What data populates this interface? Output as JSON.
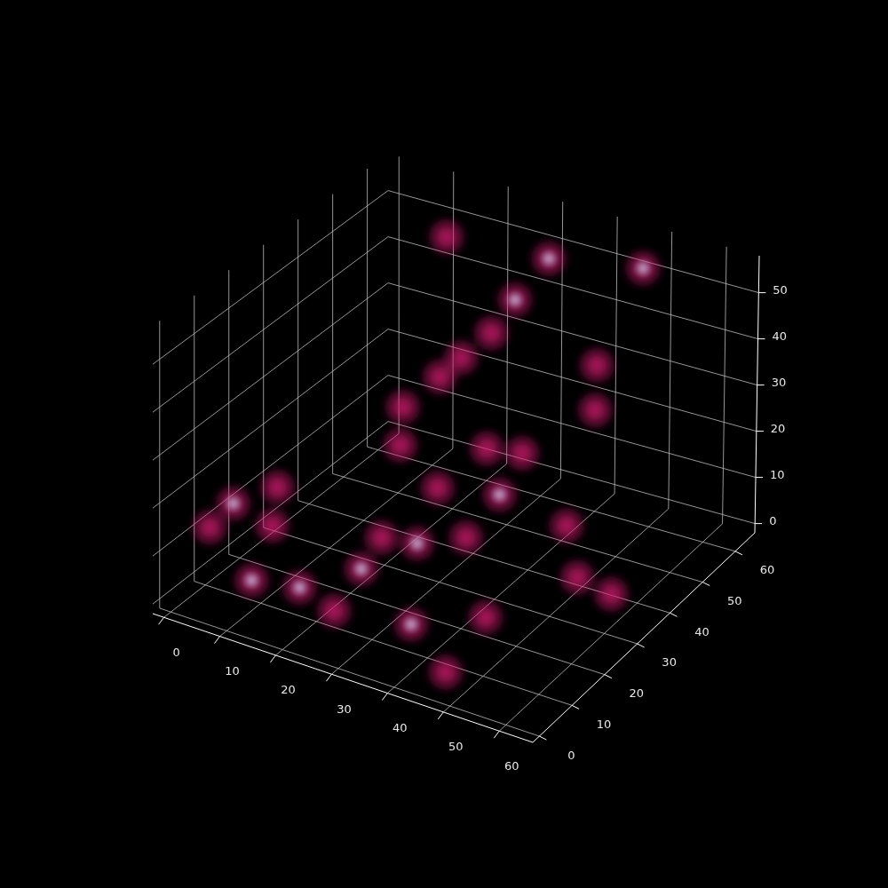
{
  "chart_data": {
    "type": "scatter3d",
    "xlim": [
      -2,
      66
    ],
    "ylim": [
      -2,
      66
    ],
    "zlim": [
      -2,
      58
    ],
    "xticks": [
      0,
      10,
      20,
      30,
      40,
      50,
      60
    ],
    "yticks": [
      0,
      10,
      20,
      30,
      40,
      50,
      60
    ],
    "zticks": [
      0,
      10,
      20,
      30,
      40,
      50
    ],
    "grid": true,
    "series": [
      {
        "color": "#d81b72",
        "marker": "blob",
        "x": [
          10,
          46,
          30,
          30,
          30,
          27,
          25,
          22,
          24,
          45,
          46,
          5,
          2,
          8,
          12,
          20,
          12,
          28,
          35,
          28,
          28,
          42,
          42,
          32,
          36,
          40,
          55,
          50,
          60,
          40,
          48,
          48
        ],
        "y": [
          64,
          64,
          62,
          52,
          45,
          41,
          38,
          32,
          28,
          52,
          50,
          10,
          8,
          18,
          10,
          5,
          4,
          2,
          15,
          16,
          10,
          18,
          28,
          26,
          34,
          38,
          30,
          35,
          32,
          5,
          2,
          14
        ],
        "z": [
          45,
          50,
          48,
          45,
          42,
          38,
          35,
          31,
          26,
          36,
          28,
          17,
          12,
          17,
          15,
          8,
          7,
          8,
          17,
          15,
          12,
          19,
          22,
          21,
          26,
          24,
          8,
          14,
          5,
          8,
          3,
          7
        ]
      },
      {
        "color": "#66d6ea",
        "marker": "blob",
        "x": [
          46,
          30,
          30,
          5,
          20,
          12,
          35,
          28,
          42,
          40
        ],
        "y": [
          64,
          62,
          52,
          10,
          5,
          4,
          15,
          10,
          28,
          5
        ],
        "z": [
          50,
          48,
          45,
          17,
          8,
          7,
          17,
          12,
          22,
          8
        ]
      }
    ]
  }
}
